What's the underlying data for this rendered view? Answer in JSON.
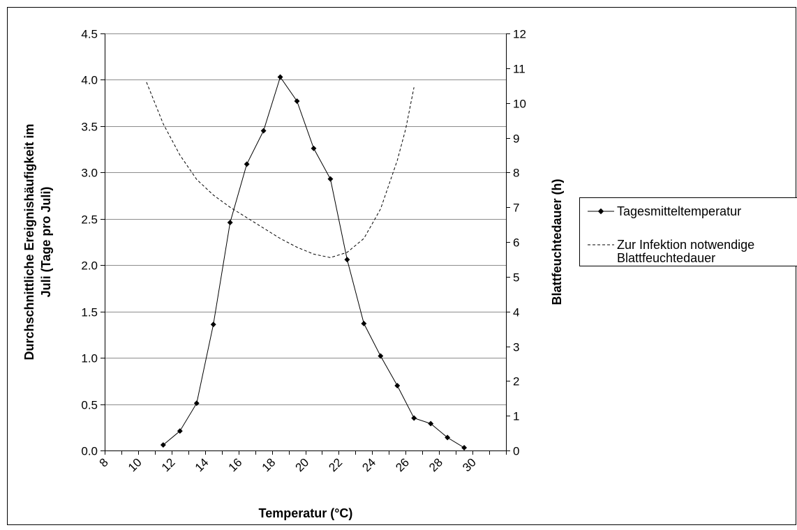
{
  "chart_data": {
    "type": "line",
    "xlabel": "Temperatur (°C)",
    "ylabel_left_line1": "Durchschnittliche Ereignishäufigkeit im",
    "ylabel_left_line2": "Juli (Tage pro Juli)",
    "ylabel_right": "Blattfeuchtedauer (h)",
    "xlim": [
      8,
      32
    ],
    "ylim_left": [
      0,
      4.5
    ],
    "ylim_right": [
      0,
      12
    ],
    "x_ticks": [
      "8",
      "10",
      "12",
      "14",
      "16",
      "18",
      "20",
      "22",
      "24",
      "26",
      "28",
      "30"
    ],
    "y_left_ticks": [
      "0.0",
      "0.5",
      "1.0",
      "1.5",
      "2.0",
      "2.5",
      "3.0",
      "3.5",
      "4.0",
      "4.5"
    ],
    "y_right_ticks": [
      "0",
      "1",
      "2",
      "3",
      "4",
      "5",
      "6",
      "7",
      "8",
      "9",
      "10",
      "11",
      "12"
    ],
    "grid": "horizontal",
    "legend_position": "right",
    "series": [
      {
        "name": "Tagesmitteltemperatur",
        "axis": "left",
        "style": "solid-markers",
        "color": "#000000",
        "x": [
          11.5,
          12.5,
          13.5,
          14.5,
          15.5,
          16.5,
          17.5,
          18.5,
          19.5,
          20.5,
          21.5,
          22.5,
          23.5,
          24.5,
          25.5,
          26.5,
          27.5,
          28.5,
          29.5
        ],
        "y": [
          0.06,
          0.21,
          0.51,
          1.36,
          2.46,
          3.09,
          3.45,
          4.03,
          3.77,
          3.26,
          2.93,
          2.06,
          1.37,
          1.02,
          0.7,
          0.35,
          0.29,
          0.14,
          0.03
        ]
      },
      {
        "name": "Zur Infektion notwendige Blattfeuchtedauer",
        "axis": "right",
        "style": "dashed",
        "color": "#000000",
        "x": [
          10.5,
          11.5,
          12.5,
          13.5,
          14.5,
          15.5,
          16.5,
          17.5,
          18.5,
          19.5,
          20.5,
          21.5,
          22.5,
          23.5,
          24.5,
          25.5,
          26.0,
          26.5
        ],
        "y": [
          10.6,
          9.4,
          8.5,
          7.8,
          7.35,
          7.0,
          6.7,
          6.4,
          6.1,
          5.85,
          5.65,
          5.55,
          5.7,
          6.1,
          6.95,
          8.35,
          9.25,
          10.45
        ]
      }
    ],
    "legend": [
      {
        "line1": "Tagesmitteltemperatur",
        "line2": ""
      },
      {
        "line1": "Zur Infektion notwendige",
        "line2": "Blattfeuchtedauer"
      }
    ]
  }
}
